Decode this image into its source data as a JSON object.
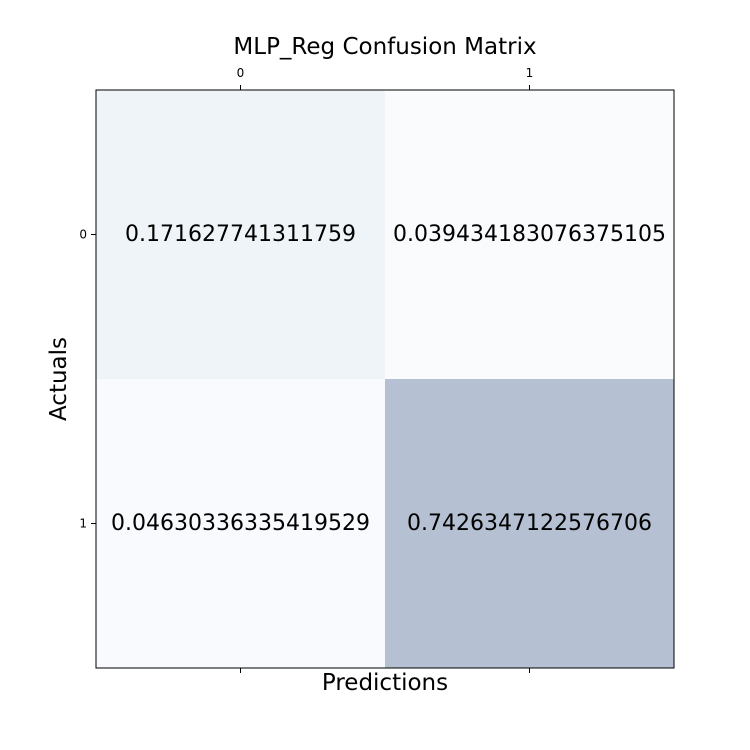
{
  "chart_data": {
    "type": "heatmap",
    "title": "MLP_Reg Confusion Matrix",
    "xlabel": "Predictions",
    "ylabel": "Actuals",
    "x_tick_labels": [
      "0",
      "1"
    ],
    "y_tick_labels": [
      "0",
      "1"
    ],
    "values": [
      [
        0.171627741311759,
        0.039434183076375105
      ],
      [
        0.04630336335419529,
        0.7426347122576706
      ]
    ],
    "value_labels": [
      [
        "0.171627741311759",
        "0.039434183076375105"
      ],
      [
        "0.04630336335419529",
        "0.7426347122576706"
      ]
    ],
    "colormap": "Blues",
    "cell_colors": [
      [
        "#eff4f8",
        "#f9fbfd"
      ],
      [
        "#f8fafd",
        "#b5c1d3"
      ]
    ],
    "x_tick_position": "top-and-bottom"
  }
}
